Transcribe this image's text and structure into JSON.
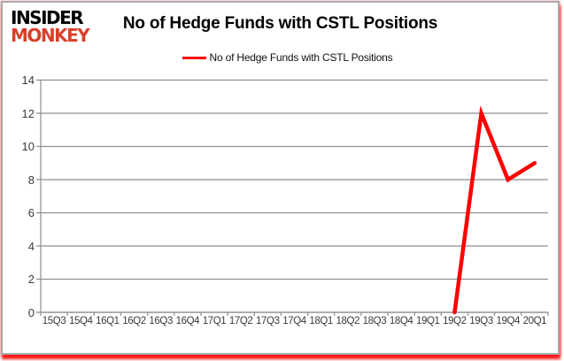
{
  "logo": {
    "line1": "INSIDER",
    "line2": "MONKEY",
    "accent_color": "#d8402a"
  },
  "header": {
    "title": "No of Hedge Funds with CSTL Positions"
  },
  "legend": {
    "label": "No of Hedge Funds with CSTL Positions",
    "line_color": "#fe0000"
  },
  "chart_data": {
    "type": "line",
    "title": "No of Hedge Funds with CSTL Positions",
    "categories": [
      "15Q3",
      "15Q4",
      "16Q1",
      "16Q2",
      "16Q3",
      "16Q4",
      "17Q1",
      "17Q2",
      "17Q3",
      "17Q4",
      "18Q1",
      "18Q2",
      "18Q3",
      "18Q4",
      "19Q1",
      "19Q2",
      "19Q3",
      "19Q4",
      "20Q1"
    ],
    "series": [
      {
        "name": "No of Hedge Funds with CSTL Positions",
        "color": "#fe0000",
        "values": [
          null,
          null,
          null,
          null,
          null,
          null,
          null,
          null,
          null,
          null,
          null,
          null,
          null,
          null,
          null,
          0,
          12,
          8,
          9
        ]
      }
    ],
    "yticks": [
      14,
      12,
      10,
      8,
      6,
      4,
      2,
      0
    ],
    "ylim": [
      0,
      14
    ],
    "grid": true,
    "gridline_color": "#8f8f8f",
    "axis_color": "#8f8f8f",
    "legend_position": "top-center"
  }
}
